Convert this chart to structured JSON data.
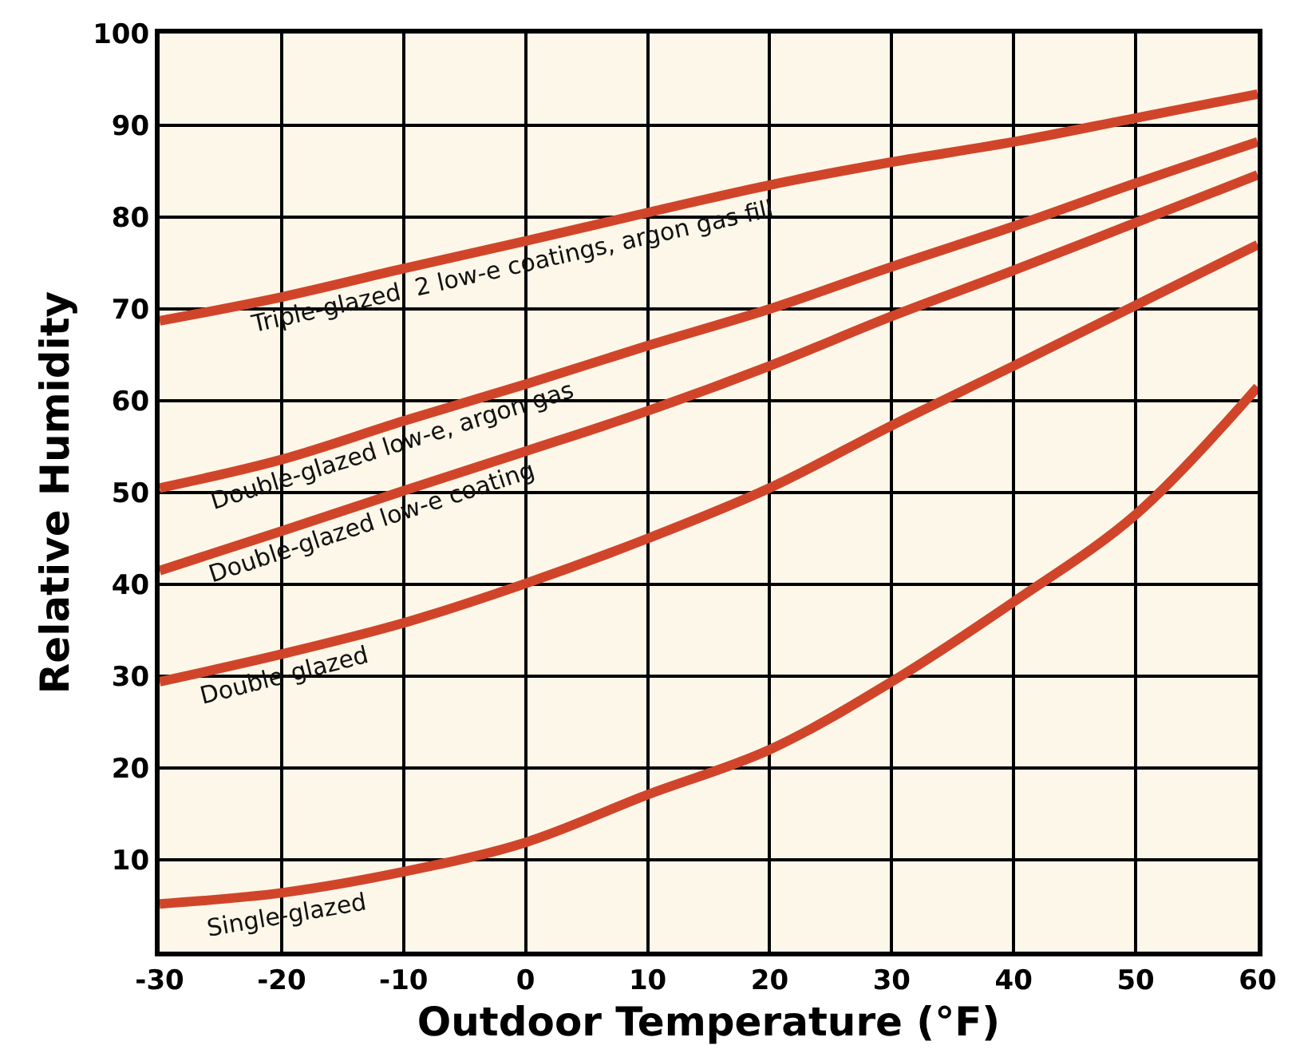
{
  "chart_data": {
    "type": "line",
    "xlabel": "Outdoor Temperature (°F)",
    "ylabel": "Relative Humidity",
    "x": [
      -30,
      -20,
      -10,
      0,
      10,
      20,
      30,
      40,
      50,
      60
    ],
    "series": [
      {
        "name": "Triple-glazed  2 low-e coatings, argon gas fill",
        "color": "#d0452a",
        "values": [
          68.7,
          71.3,
          74.4,
          77.4,
          80.5,
          83.5,
          86,
          88.2,
          90.8,
          93.4
        ]
      },
      {
        "name": "Double-glazed low-e, argon gas",
        "color": "#d0452a",
        "values": [
          50.5,
          53.6,
          57.8,
          61.8,
          66,
          70,
          74.6,
          79,
          83.7,
          88.2
        ]
      },
      {
        "name": "Double-glazed low-e coating",
        "color": "#d0452a",
        "values": [
          41.5,
          45.8,
          50.2,
          54.5,
          58.9,
          63.8,
          69.2,
          74.2,
          79.4,
          84.6
        ]
      },
      {
        "name": "Double-glazed",
        "color": "#d0452a",
        "values": [
          29.4,
          32.4,
          35.8,
          40.1,
          45,
          50.5,
          57.3,
          63.8,
          70.4,
          77
        ]
      },
      {
        "name": "Single-glazed",
        "color": "#d0452a",
        "values": [
          5.2,
          6.4,
          8.7,
          11.9,
          17.1,
          22,
          29.4,
          38.1,
          47.6,
          61.5
        ]
      }
    ],
    "xlim": [
      -30,
      60
    ],
    "xticks": [
      -30,
      -20,
      -10,
      0,
      10,
      20,
      30,
      40,
      50,
      60
    ],
    "ylim": [
      0,
      100
    ],
    "yticks": [
      10,
      20,
      30,
      40,
      50,
      60,
      70,
      80,
      90,
      100
    ],
    "grid": true,
    "marker": "none",
    "line_style": "solid"
  }
}
